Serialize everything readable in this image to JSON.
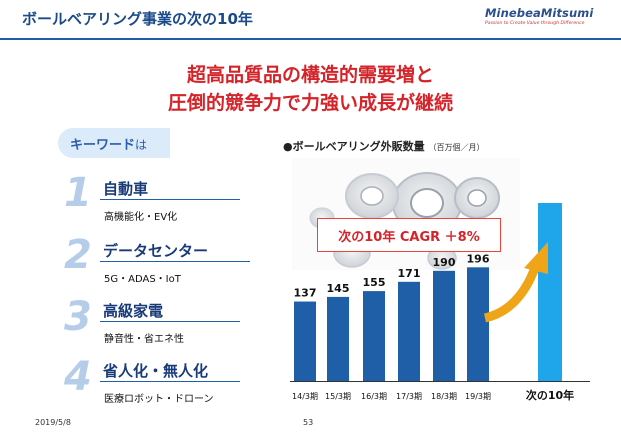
{
  "header": {
    "title": "ボールベアリング事業の次の10年",
    "logo_main": "MinebeaMitsumi",
    "logo_sub": "Passion to Create Value through Difference"
  },
  "headline": {
    "line1": "超高品質品の構造的需要増と",
    "line2": "圧倒的競争力で力強い成長が継続"
  },
  "keywords": {
    "label": "キーワード",
    "label_suffix": "は",
    "items": [
      {
        "num": "1",
        "title": "自動車",
        "sub": "高機能化・EV化"
      },
      {
        "num": "2",
        "title": "データセンター",
        "sub": "5G・ADAS・IoT"
      },
      {
        "num": "3",
        "title": "高級家電",
        "sub": "静音性・省エネ性"
      },
      {
        "num": "4",
        "title": "省人化・無人化",
        "sub": "医療ロボット・ドローン"
      }
    ]
  },
  "chart_data": {
    "type": "bar",
    "title": "●ボールベアリング外販数量",
    "unit": "（百万個／月）",
    "categories": [
      "14/3期",
      "15/3期",
      "16/3期",
      "17/3期",
      "18/3期",
      "19/3期",
      "次の10年"
    ],
    "values": [
      137,
      145,
      155,
      171,
      190,
      196,
      null
    ],
    "value_labels": [
      "137",
      "145",
      "155",
      "171",
      "190",
      "196",
      ""
    ],
    "annotation": "次の10年 CAGR ＋8%",
    "bar_color": "#1f5fa8",
    "future_bar_color": "#1fa6ea",
    "arrow_color": "#f0a417"
  },
  "footer": {
    "date": "2019/5/8",
    "page": "53"
  }
}
